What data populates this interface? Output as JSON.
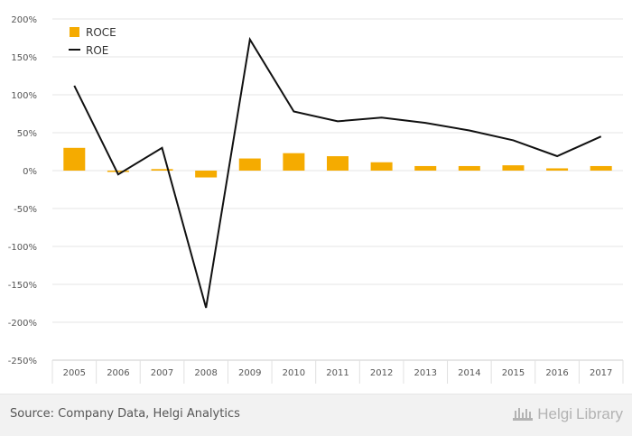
{
  "chart_data": {
    "type": "bar",
    "categories": [
      "2005",
      "2006",
      "2007",
      "2008",
      "2009",
      "2010",
      "2011",
      "2012",
      "2013",
      "2014",
      "2015",
      "2016",
      "2017"
    ],
    "series": [
      {
        "name": "ROCE",
        "kind": "bar",
        "color": "#f5ab00",
        "values": [
          30,
          -1,
          2,
          -9,
          16,
          23,
          19,
          11,
          6,
          6,
          7,
          3,
          6
        ]
      },
      {
        "name": "ROE",
        "kind": "line",
        "color": "#111111",
        "values": [
          112,
          -5,
          30,
          -181,
          173,
          78,
          65,
          70,
          63,
          53,
          40,
          19,
          45
        ]
      }
    ],
    "yticks": [
      "200%",
      "150%",
      "100%",
      "50%",
      "0%",
      "-50%",
      "-100%",
      "-150%",
      "-200%",
      "-250%"
    ],
    "ylim": [
      -250,
      200
    ],
    "grid": true,
    "legend": "top-left",
    "title": "",
    "xlabel": "",
    "ylabel": ""
  },
  "footer": {
    "source": "Source: Company Data, Helgi Analytics",
    "brand_helgi": "Helgi",
    "brand_library": "Library"
  }
}
